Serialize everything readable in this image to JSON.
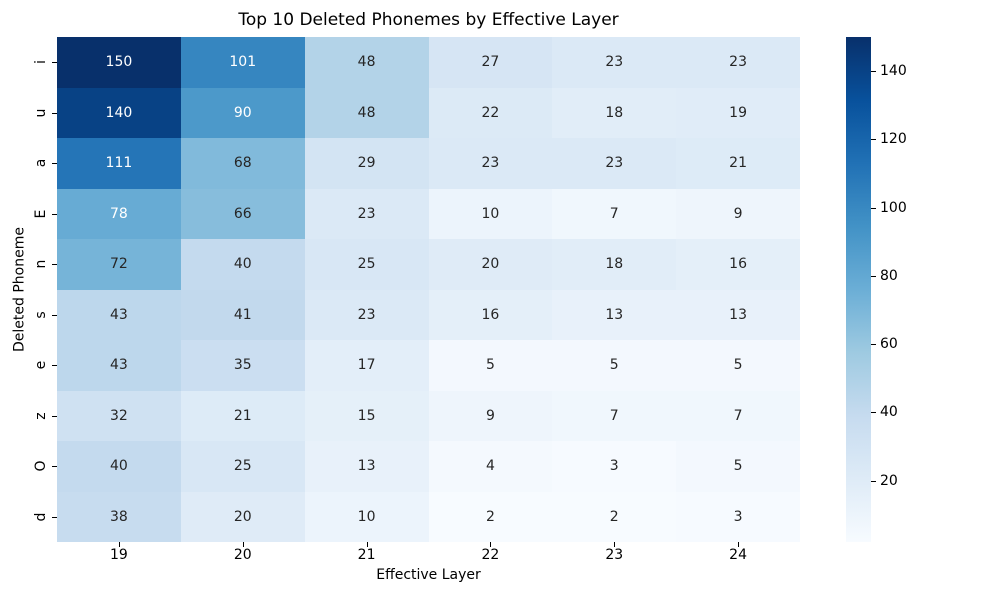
{
  "chart_data": {
    "type": "heatmap",
    "title": "Top 10 Deleted Phonemes by Effective Layer",
    "xlabel": "Effective Layer",
    "ylabel": "Deleted Phoneme",
    "columns": [
      "19",
      "20",
      "21",
      "22",
      "23",
      "24"
    ],
    "rows": [
      "i",
      "u",
      "a",
      "E",
      "n",
      "s",
      "e",
      "z",
      "O",
      "d"
    ],
    "values": [
      [
        150,
        101,
        48,
        27,
        23,
        23
      ],
      [
        140,
        90,
        48,
        22,
        18,
        19
      ],
      [
        111,
        68,
        29,
        23,
        23,
        21
      ],
      [
        78,
        66,
        23,
        10,
        7,
        9
      ],
      [
        72,
        40,
        25,
        20,
        18,
        16
      ],
      [
        43,
        41,
        23,
        16,
        13,
        13
      ],
      [
        43,
        35,
        17,
        5,
        5,
        5
      ],
      [
        32,
        21,
        15,
        9,
        7,
        7
      ],
      [
        40,
        25,
        13,
        4,
        3,
        5
      ],
      [
        38,
        20,
        10,
        2,
        2,
        3
      ]
    ],
    "colormap": {
      "name": "Blues",
      "vmin": 2,
      "vmax": 150,
      "stops": [
        "#f7fbff",
        "#deebf7",
        "#c6dbef",
        "#9ecae1",
        "#6baed6",
        "#4292c6",
        "#2171b5",
        "#08519c",
        "#08306b"
      ]
    },
    "colorbar_ticks": [
      20,
      40,
      60,
      80,
      100,
      120,
      140
    ],
    "annot_color_dark": "#262626",
    "annot_color_light": "#ffffff",
    "legend_position": "right",
    "grid": false
  }
}
